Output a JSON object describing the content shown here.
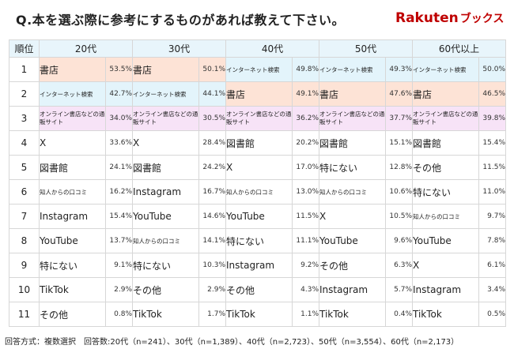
{
  "title": "Q.本を選ぶ際に参考にするものがあれば教えて下さい。",
  "logo": {
    "rakuten": "Rakuten",
    "books": "ブックス"
  },
  "columns": [
    "順位",
    "20代",
    "30代",
    "40代",
    "50代",
    "60代以上"
  ],
  "rows": [
    {
      "rank": "1",
      "cells": [
        {
          "label": "書店",
          "pct": "53.5%",
          "cat": "shoten"
        },
        {
          "label": "書店",
          "pct": "50.1%",
          "cat": "shoten"
        },
        {
          "label": "インターネット検索",
          "pct": "49.8%",
          "cat": "net"
        },
        {
          "label": "インターネット検索",
          "pct": "49.3%",
          "cat": "net"
        },
        {
          "label": "インターネット検索",
          "pct": "50.0%",
          "cat": "net"
        }
      ]
    },
    {
      "rank": "2",
      "cells": [
        {
          "label": "インターネット検索",
          "pct": "42.7%",
          "cat": "net"
        },
        {
          "label": "インターネット検索",
          "pct": "44.1%",
          "cat": "net"
        },
        {
          "label": "書店",
          "pct": "49.1%",
          "cat": "shoten"
        },
        {
          "label": "書店",
          "pct": "47.6%",
          "cat": "shoten"
        },
        {
          "label": "書店",
          "pct": "46.5%",
          "cat": "shoten"
        }
      ]
    },
    {
      "rank": "3",
      "cells": [
        {
          "label": "オンライン書店などの通販サイト",
          "pct": "34.0%",
          "cat": "online"
        },
        {
          "label": "オンライン書店などの通販サイト",
          "pct": "30.5%",
          "cat": "online"
        },
        {
          "label": "オンライン書店などの通販サイト",
          "pct": "36.2%",
          "cat": "online"
        },
        {
          "label": "オンライン書店などの通販サイト",
          "pct": "37.7%",
          "cat": "online"
        },
        {
          "label": "オンライン書店などの通販サイト",
          "pct": "39.8%",
          "cat": "online"
        }
      ]
    },
    {
      "rank": "4",
      "cells": [
        {
          "label": "X",
          "pct": "33.6%"
        },
        {
          "label": "X",
          "pct": "28.4%"
        },
        {
          "label": "図書館",
          "pct": "20.2%"
        },
        {
          "label": "図書館",
          "pct": "15.1%"
        },
        {
          "label": "図書館",
          "pct": "15.4%"
        }
      ]
    },
    {
      "rank": "5",
      "cells": [
        {
          "label": "図書館",
          "pct": "24.1%"
        },
        {
          "label": "図書館",
          "pct": "24.2%"
        },
        {
          "label": "X",
          "pct": "17.0%"
        },
        {
          "label": "特にない",
          "pct": "12.8%"
        },
        {
          "label": "その他",
          "pct": "11.5%"
        }
      ]
    },
    {
      "rank": "6",
      "cells": [
        {
          "label": "知人からの口コミ",
          "pct": "16.2%",
          "small": true
        },
        {
          "label": "Instagram",
          "pct": "16.7%"
        },
        {
          "label": "知人からの口コミ",
          "pct": "13.0%",
          "small": true
        },
        {
          "label": "知人からの口コミ",
          "pct": "10.6%",
          "small": true
        },
        {
          "label": "特にない",
          "pct": "11.0%"
        }
      ]
    },
    {
      "rank": "7",
      "cells": [
        {
          "label": "Instagram",
          "pct": "15.4%"
        },
        {
          "label": "YouTube",
          "pct": "14.6%"
        },
        {
          "label": "YouTube",
          "pct": "11.5%"
        },
        {
          "label": "X",
          "pct": "10.5%"
        },
        {
          "label": "知人からの口コミ",
          "pct": "9.7%",
          "small": true
        }
      ]
    },
    {
      "rank": "8",
      "cells": [
        {
          "label": "YouTube",
          "pct": "13.7%"
        },
        {
          "label": "知人からの口コミ",
          "pct": "14.1%",
          "small": true
        },
        {
          "label": "特にない",
          "pct": "11.1%"
        },
        {
          "label": "YouTube",
          "pct": "9.6%"
        },
        {
          "label": "YouTube",
          "pct": "7.8%"
        }
      ]
    },
    {
      "rank": "9",
      "cells": [
        {
          "label": "特にない",
          "pct": "9.1%"
        },
        {
          "label": "特にない",
          "pct": "10.3%"
        },
        {
          "label": "Instagram",
          "pct": "9.2%"
        },
        {
          "label": "その他",
          "pct": "6.3%"
        },
        {
          "label": "X",
          "pct": "6.1%"
        }
      ]
    },
    {
      "rank": "10",
      "cells": [
        {
          "label": "TikTok",
          "pct": "2.9%"
        },
        {
          "label": "その他",
          "pct": "2.9%"
        },
        {
          "label": "その他",
          "pct": "4.3%"
        },
        {
          "label": "Instagram",
          "pct": "5.7%"
        },
        {
          "label": "Instagram",
          "pct": "3.4%"
        }
      ]
    },
    {
      "rank": "11",
      "cells": [
        {
          "label": "その他",
          "pct": "0.8%"
        },
        {
          "label": "TikTok",
          "pct": "1.7%"
        },
        {
          "label": "TikTok",
          "pct": "1.1%"
        },
        {
          "label": "TikTok",
          "pct": "0.4%"
        },
        {
          "label": "TikTok",
          "pct": "0.5%"
        }
      ]
    }
  ],
  "footer": "回答方式：複数選択　回答数:20代（n=241）、30代（n=1,389）、40代（n=2,723）、50代（n=3,554）、60代（n=2,173）",
  "colors": {
    "shoten": "#fde3d6",
    "net": "#e3f4fb",
    "online": "#f7e3f7",
    "header": "#e8f5fb",
    "logo": "#bf0000"
  }
}
